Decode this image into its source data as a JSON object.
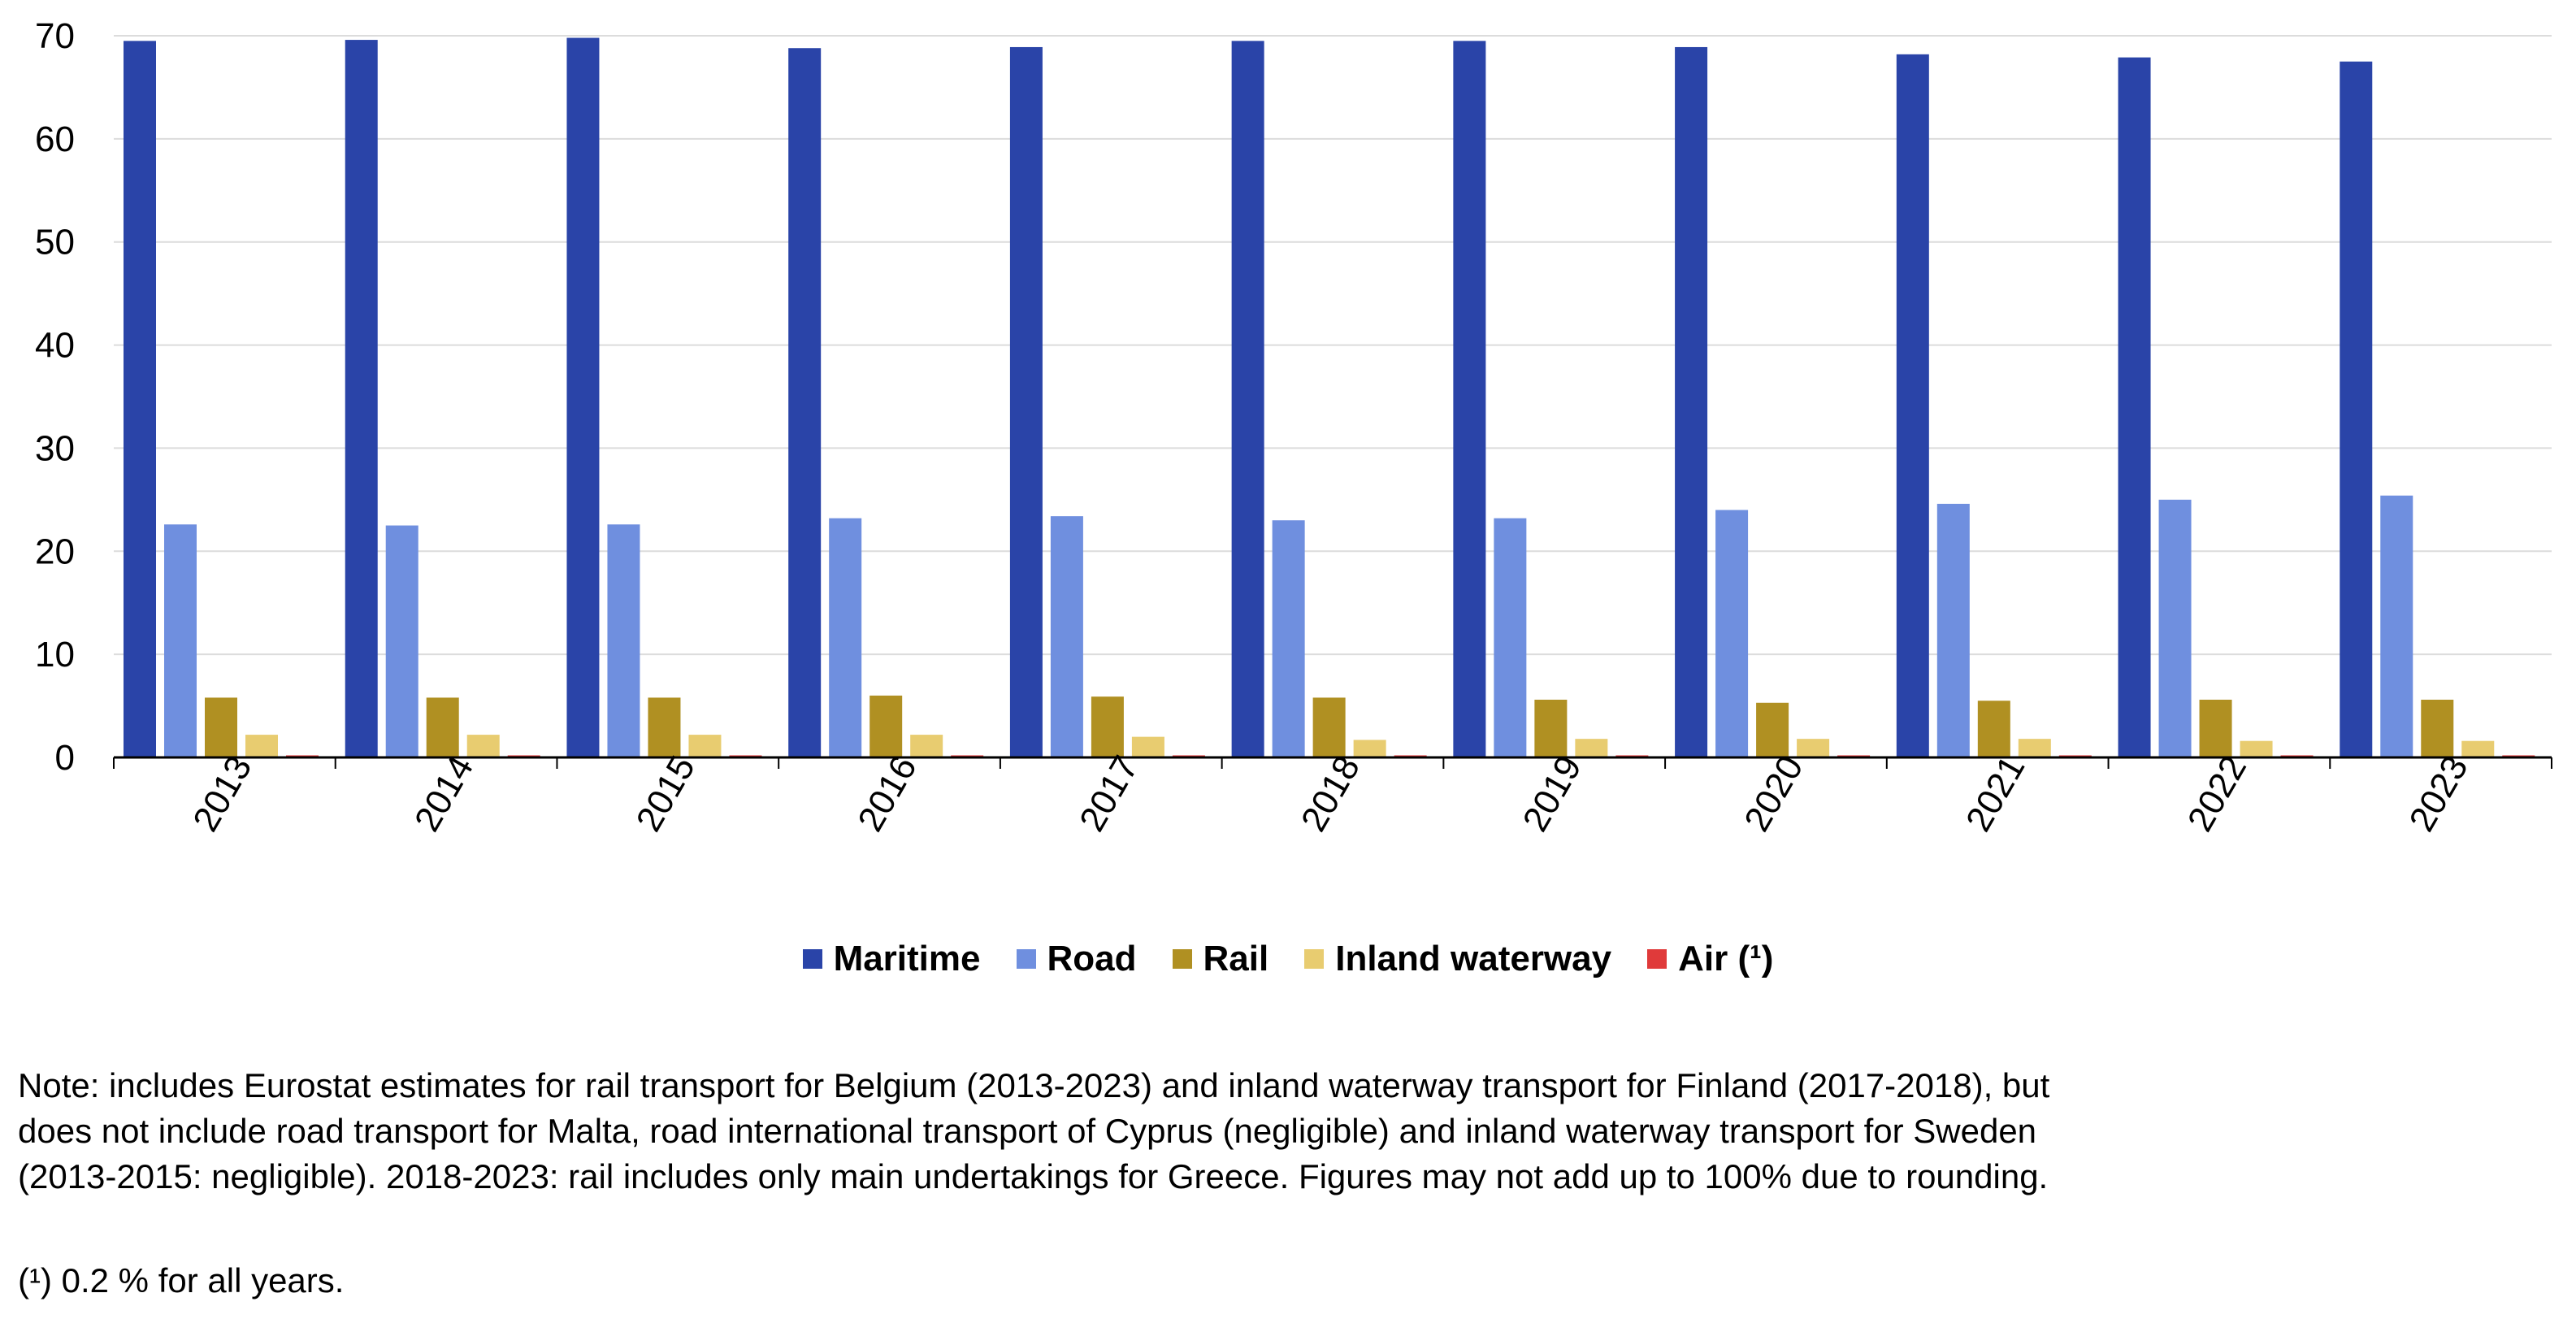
{
  "chart_data": {
    "type": "bar",
    "title": "",
    "xlabel": "",
    "ylabel": "",
    "ylim": [
      0,
      70
    ],
    "yticks": [
      0,
      10,
      20,
      30,
      40,
      50,
      60,
      70
    ],
    "grid": true,
    "legend_position": "bottom-center",
    "categories": [
      "2013",
      "2014",
      "2015",
      "2016",
      "2017",
      "2018",
      "2019",
      "2020",
      "2021",
      "2022",
      "2023"
    ],
    "series": [
      {
        "name": "Maritime",
        "color": "#2a44a8",
        "values": [
          69.5,
          69.6,
          69.8,
          68.8,
          68.9,
          69.5,
          69.5,
          68.9,
          68.2,
          67.9,
          67.5
        ]
      },
      {
        "name": "Road",
        "color": "#6f8fdf",
        "values": [
          22.6,
          22.5,
          22.6,
          23.2,
          23.4,
          23.0,
          23.2,
          24.0,
          24.6,
          25.0,
          25.4
        ]
      },
      {
        "name": "Rail",
        "color": "#b09022",
        "values": [
          5.8,
          5.8,
          5.8,
          6.0,
          5.9,
          5.8,
          5.6,
          5.3,
          5.5,
          5.6,
          5.6
        ]
      },
      {
        "name": "Inland waterway",
        "color": "#e8cc70",
        "values": [
          2.2,
          2.2,
          2.2,
          2.2,
          2.0,
          1.7,
          1.8,
          1.8,
          1.8,
          1.6,
          1.6
        ]
      },
      {
        "name": "Air (¹)",
        "color": "#e03a3a",
        "values": [
          0.2,
          0.2,
          0.2,
          0.2,
          0.2,
          0.2,
          0.2,
          0.2,
          0.2,
          0.2,
          0.2
        ]
      }
    ]
  },
  "note": "Note: includes Eurostat estimates for rail transport for Belgium (2013-2023) and inland waterway transport for Finland (2017-2018), but does not include road transport for Malta, road international transport of Cyprus (negligible) and inland waterway transport for Sweden (2013-2015: negligible). 2018-2023: rail includes only main undertakings for Greece. Figures may not add up to 100% due to rounding.",
  "footnote": "(¹) 0.2 % for all years."
}
